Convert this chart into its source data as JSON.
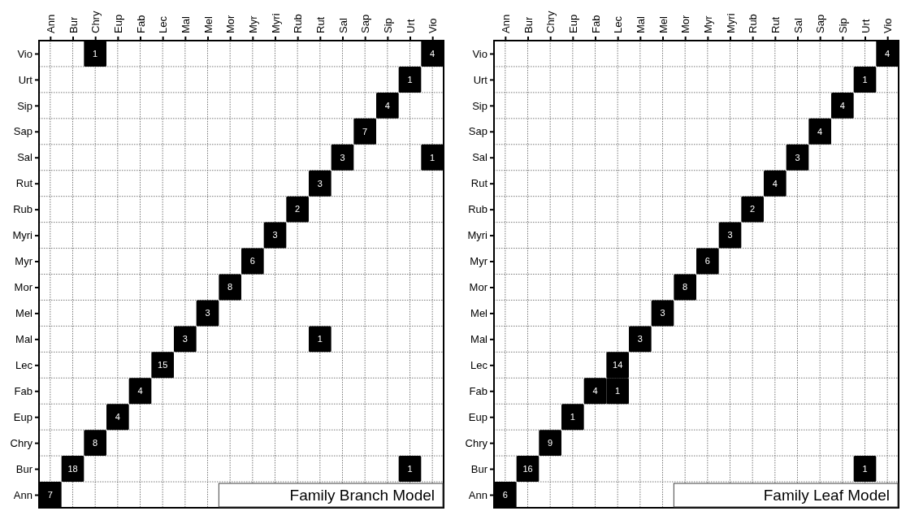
{
  "chart_data": [
    {
      "type": "heatmap",
      "title": "Family Branch Model",
      "color": "#000000",
      "grid": true,
      "data_labels": true,
      "categories": [
        "Ann",
        "Bur",
        "Chry",
        "Eup",
        "Fab",
        "Lec",
        "Mal",
        "Mel",
        "Mor",
        "Myr",
        "Myri",
        "Rub",
        "Rut",
        "Sal",
        "Sap",
        "Sip",
        "Urt",
        "Vio"
      ],
      "y_categories": [
        "Vio",
        "Urt",
        "Sip",
        "Sap",
        "Sal",
        "Rut",
        "Rub",
        "Myri",
        "Myr",
        "Mor",
        "Mel",
        "Mal",
        "Lec",
        "Fab",
        "Eup",
        "Chry",
        "Bur",
        "Ann"
      ],
      "cells": [
        [
          null,
          null,
          1,
          null,
          null,
          null,
          null,
          null,
          null,
          null,
          null,
          null,
          null,
          null,
          null,
          null,
          null,
          4
        ],
        [
          null,
          null,
          null,
          null,
          null,
          null,
          null,
          null,
          null,
          null,
          null,
          null,
          null,
          null,
          null,
          null,
          1,
          null
        ],
        [
          null,
          null,
          null,
          null,
          null,
          null,
          null,
          null,
          null,
          null,
          null,
          null,
          null,
          null,
          null,
          4,
          null,
          null
        ],
        [
          null,
          null,
          null,
          null,
          null,
          null,
          null,
          null,
          null,
          null,
          null,
          null,
          null,
          null,
          7,
          null,
          null,
          null
        ],
        [
          null,
          null,
          null,
          null,
          null,
          null,
          null,
          null,
          null,
          null,
          null,
          null,
          null,
          3,
          null,
          null,
          null,
          1
        ],
        [
          null,
          null,
          null,
          null,
          null,
          null,
          null,
          null,
          null,
          null,
          null,
          null,
          3,
          null,
          null,
          null,
          null,
          null
        ],
        [
          null,
          null,
          null,
          null,
          null,
          null,
          null,
          null,
          null,
          null,
          null,
          2,
          null,
          null,
          null,
          null,
          null,
          null
        ],
        [
          null,
          null,
          null,
          null,
          null,
          null,
          null,
          null,
          null,
          null,
          3,
          null,
          null,
          null,
          null,
          null,
          null,
          null
        ],
        [
          null,
          null,
          null,
          null,
          null,
          null,
          null,
          null,
          null,
          6,
          null,
          null,
          null,
          null,
          null,
          null,
          null,
          null
        ],
        [
          null,
          null,
          null,
          null,
          null,
          null,
          null,
          null,
          8,
          null,
          null,
          null,
          null,
          null,
          null,
          null,
          null,
          null
        ],
        [
          null,
          null,
          null,
          null,
          null,
          null,
          null,
          3,
          null,
          null,
          null,
          null,
          null,
          null,
          null,
          null,
          null,
          null
        ],
        [
          null,
          null,
          null,
          null,
          null,
          null,
          3,
          null,
          null,
          null,
          null,
          null,
          1,
          null,
          null,
          null,
          null,
          null
        ],
        [
          null,
          null,
          null,
          null,
          null,
          15,
          null,
          null,
          null,
          null,
          null,
          null,
          null,
          null,
          null,
          null,
          null,
          null
        ],
        [
          null,
          null,
          null,
          null,
          4,
          null,
          null,
          null,
          null,
          null,
          null,
          null,
          null,
          null,
          null,
          null,
          null,
          null
        ],
        [
          null,
          null,
          null,
          4,
          null,
          null,
          null,
          null,
          null,
          null,
          null,
          null,
          null,
          null,
          null,
          null,
          null,
          null
        ],
        [
          null,
          null,
          8,
          null,
          null,
          null,
          null,
          null,
          null,
          null,
          null,
          null,
          null,
          null,
          null,
          null,
          null,
          null
        ],
        [
          null,
          18,
          null,
          null,
          null,
          null,
          null,
          null,
          null,
          null,
          null,
          null,
          null,
          null,
          null,
          null,
          1,
          null
        ],
        [
          7,
          null,
          null,
          null,
          null,
          null,
          null,
          null,
          null,
          null,
          null,
          null,
          null,
          null,
          null,
          null,
          null,
          null
        ]
      ]
    },
    {
      "type": "heatmap",
      "title": "Family Leaf Model",
      "color": "#000000",
      "grid": true,
      "data_labels": true,
      "categories": [
        "Ann",
        "Bur",
        "Chry",
        "Eup",
        "Fab",
        "Lec",
        "Mal",
        "Mel",
        "Mor",
        "Myr",
        "Myri",
        "Rub",
        "Rut",
        "Sal",
        "Sap",
        "Sip",
        "Urt",
        "Vio"
      ],
      "y_categories": [
        "Vio",
        "Urt",
        "Sip",
        "Sap",
        "Sal",
        "Rut",
        "Rub",
        "Myri",
        "Myr",
        "Mor",
        "Mel",
        "Mal",
        "Lec",
        "Fab",
        "Eup",
        "Chry",
        "Bur",
        "Ann"
      ],
      "cells": [
        [
          null,
          null,
          null,
          null,
          null,
          null,
          null,
          null,
          null,
          null,
          null,
          null,
          null,
          null,
          null,
          null,
          null,
          4
        ],
        [
          null,
          null,
          null,
          null,
          null,
          null,
          null,
          null,
          null,
          null,
          null,
          null,
          null,
          null,
          null,
          null,
          1,
          null
        ],
        [
          null,
          null,
          null,
          null,
          null,
          null,
          null,
          null,
          null,
          null,
          null,
          null,
          null,
          null,
          null,
          4,
          null,
          null
        ],
        [
          null,
          null,
          null,
          null,
          null,
          null,
          null,
          null,
          null,
          null,
          null,
          null,
          null,
          null,
          4,
          null,
          null,
          null
        ],
        [
          null,
          null,
          null,
          null,
          null,
          null,
          null,
          null,
          null,
          null,
          null,
          null,
          null,
          3,
          null,
          null,
          null,
          null
        ],
        [
          null,
          null,
          null,
          null,
          null,
          null,
          null,
          null,
          null,
          null,
          null,
          null,
          4,
          null,
          null,
          null,
          null,
          null
        ],
        [
          null,
          null,
          null,
          null,
          null,
          null,
          null,
          null,
          null,
          null,
          null,
          2,
          null,
          null,
          null,
          null,
          null,
          null
        ],
        [
          null,
          null,
          null,
          null,
          null,
          null,
          null,
          null,
          null,
          null,
          3,
          null,
          null,
          null,
          null,
          null,
          null,
          null
        ],
        [
          null,
          null,
          null,
          null,
          null,
          null,
          null,
          null,
          null,
          6,
          null,
          null,
          null,
          null,
          null,
          null,
          null,
          null
        ],
        [
          null,
          null,
          null,
          null,
          null,
          null,
          null,
          null,
          8,
          null,
          null,
          null,
          null,
          null,
          null,
          null,
          null,
          null
        ],
        [
          null,
          null,
          null,
          null,
          null,
          null,
          null,
          3,
          null,
          null,
          null,
          null,
          null,
          null,
          null,
          null,
          null,
          null
        ],
        [
          null,
          null,
          null,
          null,
          null,
          null,
          3,
          null,
          null,
          null,
          null,
          null,
          null,
          null,
          null,
          null,
          null,
          null
        ],
        [
          null,
          null,
          null,
          null,
          null,
          14,
          null,
          null,
          null,
          null,
          null,
          null,
          null,
          null,
          null,
          null,
          null,
          null
        ],
        [
          null,
          null,
          null,
          null,
          4,
          1,
          null,
          null,
          null,
          null,
          null,
          null,
          null,
          null,
          null,
          null,
          null,
          null
        ],
        [
          null,
          null,
          null,
          1,
          null,
          null,
          null,
          null,
          null,
          null,
          null,
          null,
          null,
          null,
          null,
          null,
          null,
          null
        ],
        [
          null,
          null,
          9,
          null,
          null,
          null,
          null,
          null,
          null,
          null,
          null,
          null,
          null,
          null,
          null,
          null,
          null,
          null
        ],
        [
          null,
          16,
          null,
          null,
          null,
          null,
          null,
          null,
          null,
          null,
          null,
          null,
          null,
          null,
          null,
          null,
          1,
          null
        ],
        [
          6,
          null,
          null,
          null,
          null,
          null,
          null,
          null,
          null,
          null,
          null,
          null,
          null,
          null,
          null,
          null,
          null,
          null
        ]
      ]
    }
  ]
}
